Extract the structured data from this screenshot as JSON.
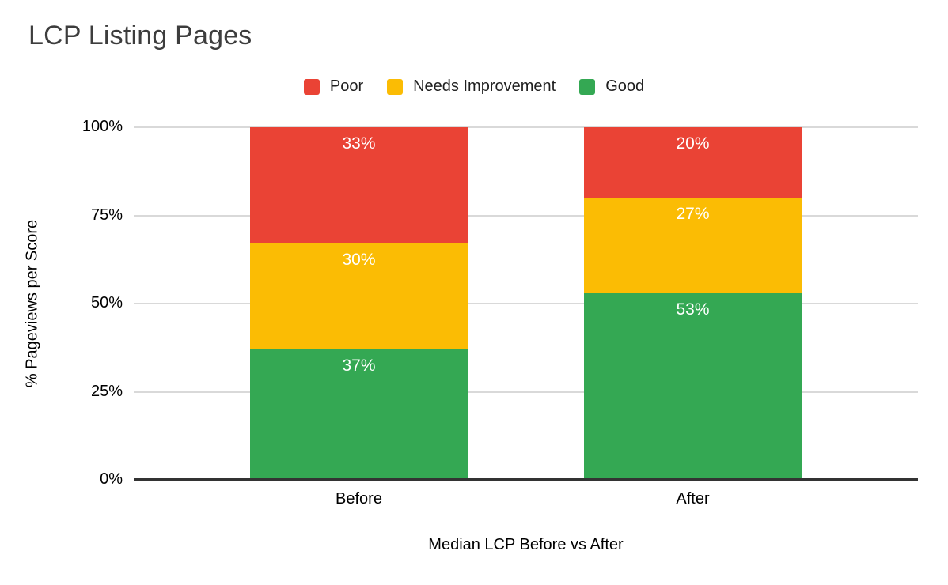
{
  "title": "LCP Listing Pages",
  "colors": {
    "poor": "#EA4335",
    "needs_improvement": "#FBBC04",
    "good": "#34A853",
    "gridline": "#D9D9D9",
    "axis_baseline": "#333333",
    "title_text": "#3D3D3D",
    "axis_text": "#000000",
    "legend_text": "#1F1F1F",
    "segment_label_text": "#FFFFFF",
    "background": "#FFFFFF"
  },
  "chart_data": {
    "type": "bar",
    "variant": "stacked-100",
    "orientation": "vertical",
    "title": "LCP Listing Pages",
    "categories": [
      "Before",
      "After"
    ],
    "series": [
      {
        "name": "Poor",
        "color": "#EA4335",
        "values": [
          33,
          20
        ]
      },
      {
        "name": "Needs Improvement",
        "color": "#FBBC04",
        "values": [
          30,
          27
        ]
      },
      {
        "name": "Good",
        "color": "#34A853",
        "values": [
          37,
          53
        ]
      }
    ],
    "stack_order_bottom_to_top": [
      "Good",
      "Needs Improvement",
      "Poor"
    ],
    "data_labels": {
      "format": "percent",
      "position": "inside-top",
      "values_by_category": {
        "Before": {
          "Poor": "33%",
          "Needs Improvement": "30%",
          "Good": "37%"
        },
        "After": {
          "Poor": "20%",
          "Needs Improvement": "27%",
          "Good": "53%"
        }
      }
    },
    "xlabel": "Median LCP Before vs After",
    "ylabel": "% Pageviews per Score",
    "ylim": [
      0,
      100
    ],
    "yticks": [
      {
        "label": "0%",
        "value": 0
      },
      {
        "label": "25%",
        "value": 25
      },
      {
        "label": "50%",
        "value": 50
      },
      {
        "label": "75%",
        "value": 75
      },
      {
        "label": "100%",
        "value": 100
      }
    ],
    "grid": true,
    "legend_position": "top-center"
  }
}
